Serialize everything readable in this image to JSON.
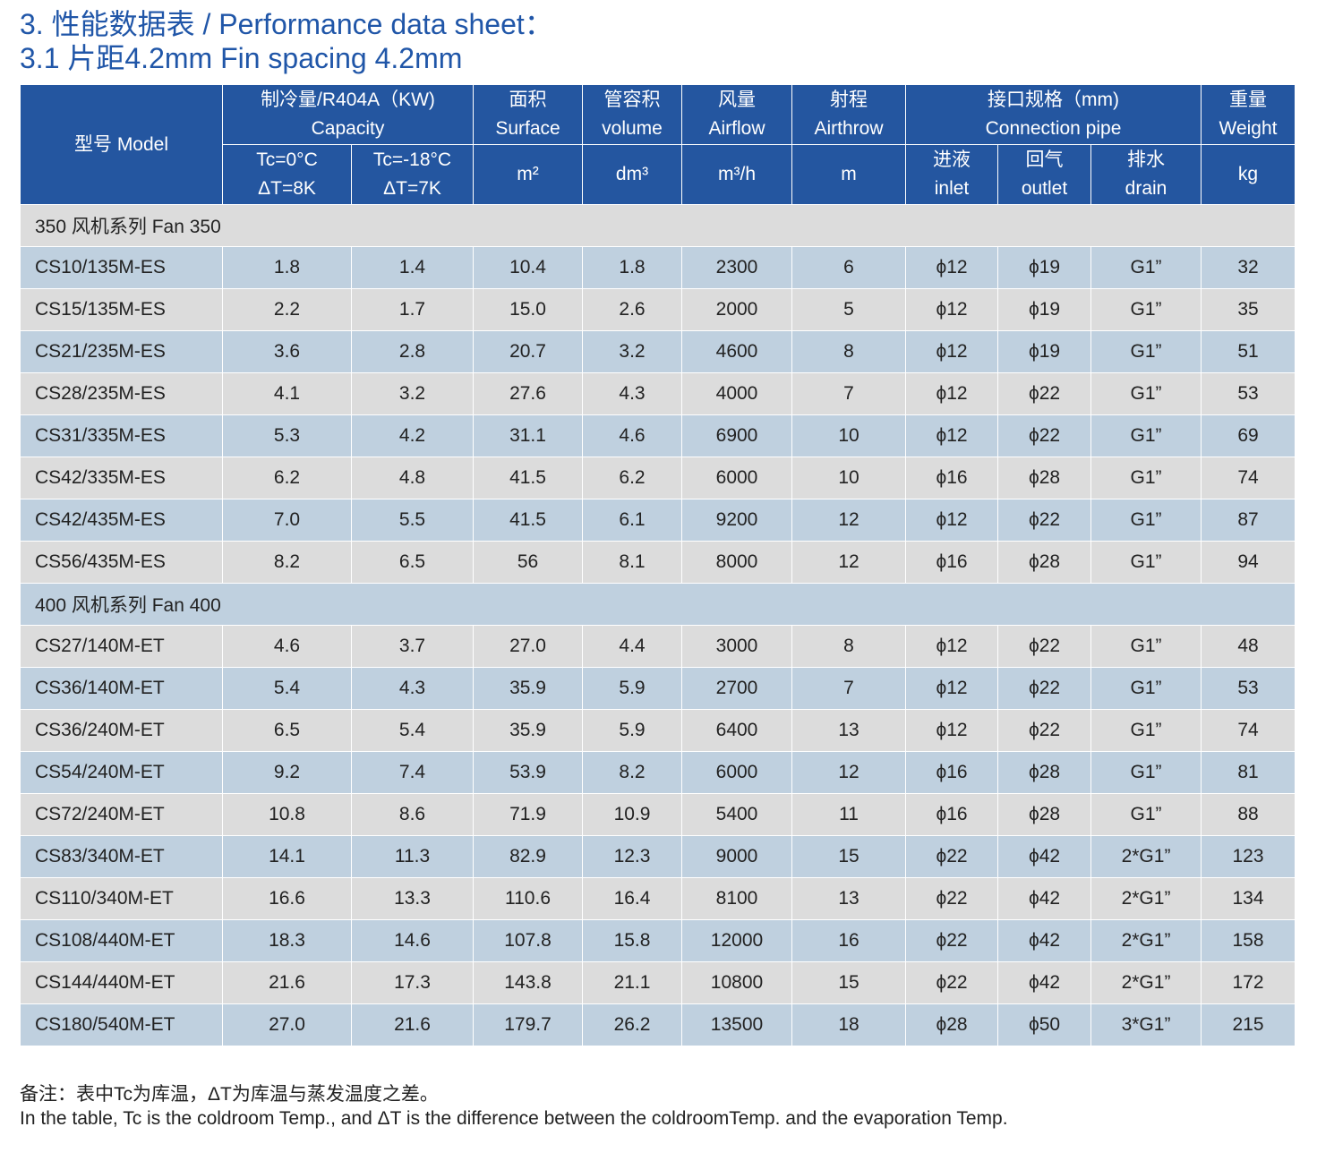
{
  "title": {
    "line1": "3. 性能数据表 / Performance data sheet：",
    "line2": "3.1 片距4.2mm  Fin spacing 4.2mm"
  },
  "header": {
    "model": "型号 Model",
    "capacity_cn": "制冷量/R404A（KW)",
    "capacity_en": "Capacity",
    "tc0_l1": "Tc=0°C",
    "tc0_l2": "ΔT=8K",
    "tc18_l1": "Tc=-18°C",
    "tc18_l2": "ΔT=7K",
    "surface_cn": "面积",
    "surface_en": "Surface",
    "surface_unit": "m²",
    "volume_cn": "管容积",
    "volume_en": "volume",
    "volume_unit": "dm³",
    "airflow_cn": "风量",
    "airflow_en": "Airflow",
    "airflow_unit": "m³/h",
    "airthrow_cn": "射程",
    "airthrow_en": "Airthrow",
    "airthrow_unit": "m",
    "conn_cn": "接口规格（mm)",
    "conn_en": "Connection pipe",
    "inlet_cn": "进液",
    "inlet_en": "inlet",
    "outlet_cn": "回气",
    "outlet_en": "outlet",
    "drain_cn": "排水",
    "drain_en": "drain",
    "weight_cn": "重量",
    "weight_en": "Weight",
    "weight_unit": "kg"
  },
  "groups": [
    {
      "label": "350 风机系列    Fan 350",
      "rows": [
        [
          "CS10/135M-ES",
          "1.8",
          "1.4",
          "10.4",
          "1.8",
          "2300",
          "6",
          "ϕ12",
          "ϕ19",
          "G1”",
          "32"
        ],
        [
          "CS15/135M-ES",
          "2.2",
          "1.7",
          "15.0",
          "2.6",
          "2000",
          "5",
          "ϕ12",
          "ϕ19",
          "G1”",
          "35"
        ],
        [
          "CS21/235M-ES",
          "3.6",
          "2.8",
          "20.7",
          "3.2",
          "4600",
          "8",
          "ϕ12",
          "ϕ19",
          "G1”",
          "51"
        ],
        [
          "CS28/235M-ES",
          "4.1",
          "3.2",
          "27.6",
          "4.3",
          "4000",
          "7",
          "ϕ12",
          "ϕ22",
          "G1”",
          "53"
        ],
        [
          "CS31/335M-ES",
          "5.3",
          "4.2",
          "31.1",
          "4.6",
          "6900",
          "10",
          "ϕ12",
          "ϕ22",
          "G1”",
          "69"
        ],
        [
          "CS42/335M-ES",
          "6.2",
          "4.8",
          "41.5",
          "6.2",
          "6000",
          "10",
          "ϕ16",
          "ϕ28",
          "G1”",
          "74"
        ],
        [
          "CS42/435M-ES",
          "7.0",
          "5.5",
          "41.5",
          "6.1",
          "9200",
          "12",
          "ϕ12",
          "ϕ22",
          "G1”",
          "87"
        ],
        [
          "CS56/435M-ES",
          "8.2",
          "6.5",
          "56",
          "8.1",
          "8000",
          "12",
          "ϕ16",
          "ϕ28",
          "G1”",
          "94"
        ]
      ]
    },
    {
      "label": "400 风机系列    Fan 400",
      "rows": [
        [
          "CS27/140M-ET",
          "4.6",
          "3.7",
          "27.0",
          "4.4",
          "3000",
          "8",
          "ϕ12",
          "ϕ22",
          "G1”",
          "48"
        ],
        [
          "CS36/140M-ET",
          "5.4",
          "4.3",
          "35.9",
          "5.9",
          "2700",
          "7",
          "ϕ12",
          "ϕ22",
          "G1”",
          "53"
        ],
        [
          "CS36/240M-ET",
          "6.5",
          "5.4",
          "35.9",
          "5.9",
          "6400",
          "13",
          "ϕ12",
          "ϕ22",
          "G1”",
          "74"
        ],
        [
          "CS54/240M-ET",
          "9.2",
          "7.4",
          "53.9",
          "8.2",
          "6000",
          "12",
          "ϕ16",
          "ϕ28",
          "G1”",
          "81"
        ],
        [
          "CS72/240M-ET",
          "10.8",
          "8.6",
          "71.9",
          "10.9",
          "5400",
          "11",
          "ϕ16",
          "ϕ28",
          "G1”",
          "88"
        ],
        [
          "CS83/340M-ET",
          "14.1",
          "11.3",
          "82.9",
          "12.3",
          "9000",
          "15",
          "ϕ22",
          "ϕ42",
          "2*G1”",
          "123"
        ],
        [
          "CS110/340M-ET",
          "16.6",
          "13.3",
          "110.6",
          "16.4",
          "8100",
          "13",
          "ϕ22",
          "ϕ42",
          "2*G1”",
          "134"
        ],
        [
          "CS108/440M-ET",
          "18.3",
          "14.6",
          "107.8",
          "15.8",
          "12000",
          "16",
          "ϕ22",
          "ϕ42",
          "2*G1”",
          "158"
        ],
        [
          "CS144/440M-ET",
          "21.6",
          "17.3",
          "143.8",
          "21.1",
          "10800",
          "15",
          "ϕ22",
          "ϕ42",
          "2*G1”",
          "172"
        ],
        [
          "CS180/540M-ET",
          "27.0",
          "21.6",
          "179.7",
          "26.2",
          "13500",
          "18",
          "ϕ28",
          "ϕ50",
          "3*G1”",
          "215"
        ]
      ]
    }
  ],
  "notes": {
    "cn": "备注：表中Tc为库温，ΔT为库温与蒸发温度之差。",
    "en": "In the table, Tc is the coldroom Temp., and ΔT is the difference between the coldroomTemp. and the evaporation Temp."
  },
  "colors": {
    "title": "#2056a8",
    "header_bg": "#2456a0",
    "row_blue": "#bfd0df",
    "row_grey": "#dcdcdc"
  }
}
